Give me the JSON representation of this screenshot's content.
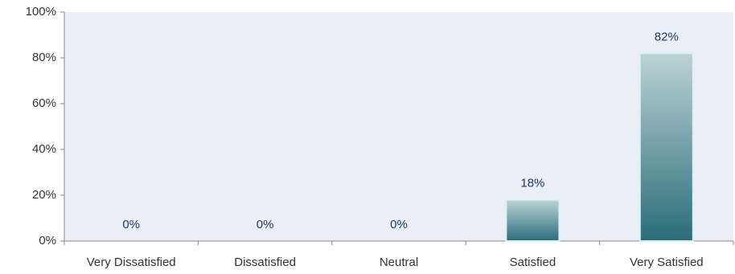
{
  "chart_data": {
    "type": "bar",
    "categories": [
      "Very Dissatisfied",
      "Dissatisfied",
      "Neutral",
      "Satisfied",
      "Very Satisfied"
    ],
    "values": [
      0,
      0,
      0,
      18,
      82
    ],
    "value_labels": [
      "0%",
      "0%",
      "0%",
      "18%",
      "82%"
    ],
    "color": "#2e7682",
    "ylim": [
      0,
      100
    ],
    "yticks": [
      {
        "value": 0,
        "label": "0%"
      },
      {
        "value": 20,
        "label": "20%"
      },
      {
        "value": 40,
        "label": "40%"
      },
      {
        "value": 60,
        "label": "60%"
      },
      {
        "value": 80,
        "label": "80%"
      },
      {
        "value": 100,
        "label": "100%"
      }
    ],
    "grid": false
  }
}
